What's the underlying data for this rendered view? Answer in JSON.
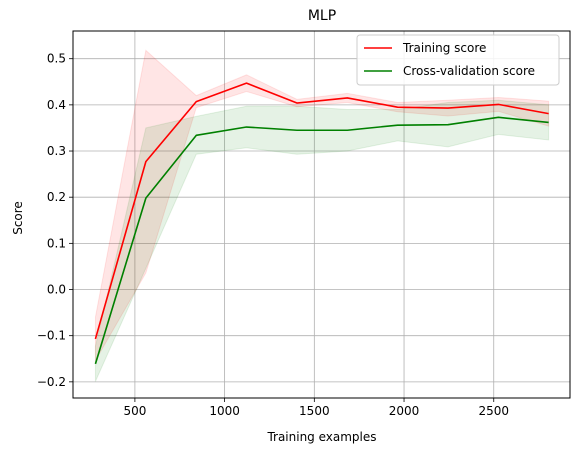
{
  "chart_data": {
    "type": "line",
    "title": "MLP",
    "xlabel": "Training examples",
    "ylabel": "Score",
    "xlim": [
      155,
      2925
    ],
    "ylim": [
      -0.235,
      0.56
    ],
    "xticks": [
      500,
      1000,
      1500,
      2000,
      2500
    ],
    "yticks": [
      -0.2,
      -0.1,
      0.0,
      0.1,
      0.2,
      0.3,
      0.4,
      0.5
    ],
    "xtick_labels": [
      "500",
      "1000",
      "1500",
      "2000",
      "2500"
    ],
    "ytick_labels": [
      "−0.2",
      "−0.1",
      "0.0",
      "0.1",
      "0.2",
      "0.3",
      "0.4",
      "0.5"
    ],
    "grid": true,
    "legend_position": "top-right",
    "x": [
      280,
      561,
      842,
      1122,
      1403,
      1684,
      1964,
      2245,
      2526,
      2806
    ],
    "series": [
      {
        "name": "Training score",
        "color": "#ff0000",
        "values": [
          -0.107,
          0.277,
          0.407,
          0.447,
          0.404,
          0.415,
          0.395,
          0.393,
          0.401,
          0.381
        ],
        "upper": [
          -0.06,
          0.518,
          0.42,
          0.465,
          0.412,
          0.425,
          0.405,
          0.41,
          0.416,
          0.408
        ],
        "lower": [
          -0.154,
          0.036,
          0.394,
          0.429,
          0.396,
          0.405,
          0.385,
          0.376,
          0.386,
          0.354
        ]
      },
      {
        "name": "Cross-validation score",
        "color": "#008000",
        "values": [
          -0.161,
          0.198,
          0.334,
          0.352,
          0.345,
          0.345,
          0.356,
          0.357,
          0.373,
          0.362
        ],
        "upper": [
          -0.123,
          0.35,
          0.375,
          0.397,
          0.397,
          0.39,
          0.39,
          0.405,
          0.41,
          0.4
        ],
        "lower": [
          -0.199,
          0.046,
          0.293,
          0.307,
          0.293,
          0.3,
          0.322,
          0.309,
          0.336,
          0.324
        ]
      }
    ]
  }
}
